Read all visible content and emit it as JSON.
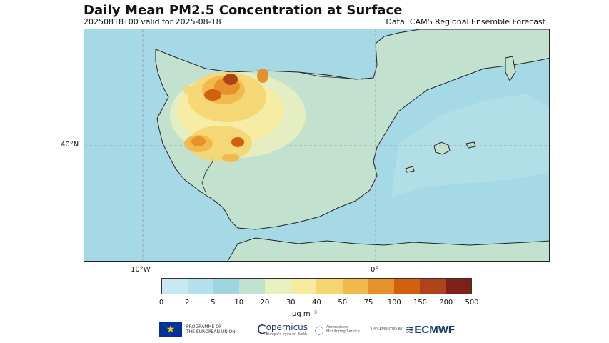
{
  "header": {
    "title": "Daily Mean PM2.5 Concentration at Surface",
    "run": "20250818T00 valid for 2025-08-18",
    "source": "Data: CAMS Regional Ensemble Forecast"
  },
  "map": {
    "region": "Iberian Peninsula",
    "lat_labels": [
      "40°N"
    ],
    "lon_labels": [
      "10°W",
      "0°"
    ],
    "background_color": "#c3e1d0",
    "sea_color": "#a8dbe5"
  },
  "colorbar": {
    "colors": [
      "#c8e8f2",
      "#b3e0ec",
      "#9fd4e3",
      "#c2e2d0",
      "#e8f0c0",
      "#f7eba0",
      "#f5d670",
      "#f0bb4c",
      "#e6912c",
      "#d2600f",
      "#b0421a",
      "#7d2218"
    ],
    "ticks": [
      "0",
      "2",
      "5",
      "10",
      "20",
      "30",
      "40",
      "50",
      "75",
      "100",
      "150",
      "200",
      "500"
    ],
    "unit": "μg m⁻³"
  },
  "logos": {
    "eu_line1": "PROGRAMME OF",
    "eu_line2": "THE EUROPEAN UNION",
    "copernicus": "opernicus",
    "copernicus_tagline": "Europe's eyes on Earth",
    "atmosphere_line1": "Atmosphere",
    "atmosphere_line2": "Monitoring Service",
    "implemented_by": "IMPLEMENTED BY",
    "ecmwf": "ECMWF"
  }
}
